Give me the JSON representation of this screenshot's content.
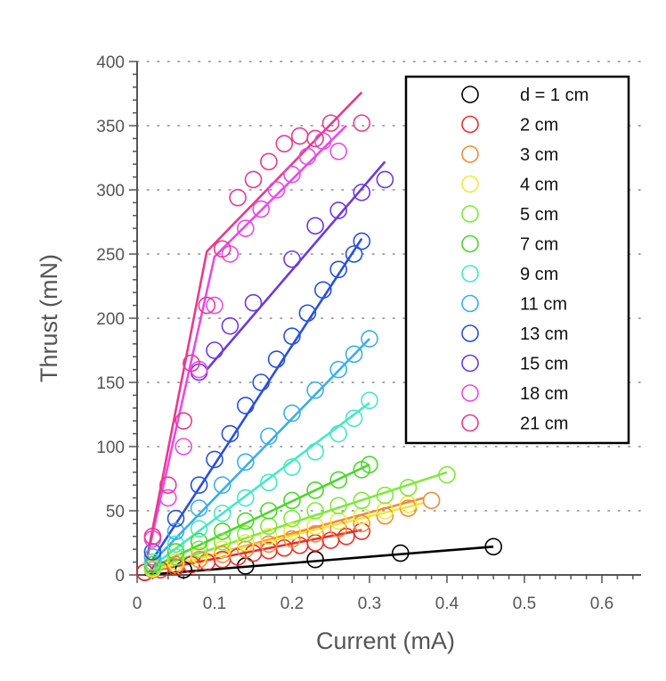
{
  "chart_data": {
    "type": "scatter",
    "title": "",
    "xlabel": "Current (mA)",
    "ylabel": "Thrust (mN)",
    "xlim": [
      0,
      0.65
    ],
    "ylim": [
      0,
      400
    ],
    "xticks": [
      "0",
      "0.1",
      "0.2",
      "0.3",
      "0.4",
      "0.5",
      "0.6"
    ],
    "yticks": [
      "0",
      "50",
      "100",
      "150",
      "200",
      "250",
      "300",
      "350",
      "400"
    ],
    "grid": "dotted-horizontal",
    "legend_position": "top-right",
    "series": [
      {
        "name": "d = 1 cm",
        "color": "#000000",
        "points": [
          [
            0.01,
            2
          ],
          [
            0.06,
            4
          ],
          [
            0.14,
            7
          ],
          [
            0.23,
            12
          ],
          [
            0.34,
            17
          ],
          [
            0.46,
            22
          ]
        ],
        "fit": [
          [
            0.01,
            0
          ],
          [
            0.46,
            22
          ]
        ]
      },
      {
        "name": "2 cm",
        "color": "#e8302c",
        "points": [
          [
            0.01,
            2
          ],
          [
            0.03,
            4
          ],
          [
            0.05,
            6
          ],
          [
            0.07,
            8
          ],
          [
            0.09,
            10
          ],
          [
            0.11,
            12
          ],
          [
            0.13,
            14
          ],
          [
            0.15,
            17
          ],
          [
            0.17,
            19
          ],
          [
            0.19,
            21
          ],
          [
            0.21,
            23
          ],
          [
            0.23,
            25
          ],
          [
            0.25,
            27
          ],
          [
            0.27,
            30
          ],
          [
            0.29,
            34
          ]
        ],
        "fit": [
          [
            0.01,
            2
          ],
          [
            0.29,
            35
          ]
        ]
      },
      {
        "name": "3 cm",
        "color": "#f08c3a",
        "points": [
          [
            0.02,
            4
          ],
          [
            0.05,
            8
          ],
          [
            0.08,
            12
          ],
          [
            0.11,
            16
          ],
          [
            0.14,
            20
          ],
          [
            0.17,
            24
          ],
          [
            0.2,
            28
          ],
          [
            0.23,
            32
          ],
          [
            0.26,
            36
          ],
          [
            0.29,
            40
          ],
          [
            0.32,
            46
          ],
          [
            0.35,
            52
          ],
          [
            0.38,
            58
          ]
        ],
        "fit": [
          [
            0.02,
            3
          ],
          [
            0.37,
            60
          ]
        ]
      },
      {
        "name": "4 cm",
        "color": "#f0e83a",
        "points": [
          [
            0.02,
            5
          ],
          [
            0.05,
            10
          ],
          [
            0.08,
            15
          ],
          [
            0.11,
            20
          ],
          [
            0.14,
            25
          ],
          [
            0.17,
            30
          ],
          [
            0.2,
            34
          ],
          [
            0.23,
            38
          ],
          [
            0.26,
            42
          ],
          [
            0.29,
            46
          ],
          [
            0.32,
            50
          ],
          [
            0.35,
            55
          ]
        ],
        "fit": [
          [
            0.02,
            4
          ],
          [
            0.37,
            56
          ]
        ]
      },
      {
        "name": "5 cm",
        "color": "#7fe83a",
        "points": [
          [
            0.02,
            6
          ],
          [
            0.05,
            14
          ],
          [
            0.08,
            20
          ],
          [
            0.11,
            26
          ],
          [
            0.14,
            32
          ],
          [
            0.17,
            38
          ],
          [
            0.2,
            44
          ],
          [
            0.23,
            50
          ],
          [
            0.26,
            54
          ],
          [
            0.29,
            58
          ],
          [
            0.32,
            62
          ],
          [
            0.35,
            68
          ],
          [
            0.4,
            78
          ]
        ],
        "fit": [
          [
            0.02,
            5
          ],
          [
            0.4,
            80
          ]
        ]
      },
      {
        "name": "7 cm",
        "color": "#4cd62a",
        "points": [
          [
            0.02,
            8
          ],
          [
            0.05,
            18
          ],
          [
            0.08,
            26
          ],
          [
            0.11,
            34
          ],
          [
            0.14,
            42
          ],
          [
            0.17,
            50
          ],
          [
            0.2,
            58
          ],
          [
            0.23,
            66
          ],
          [
            0.26,
            74
          ],
          [
            0.29,
            82
          ],
          [
            0.3,
            86
          ]
        ],
        "fit": [
          [
            0.02,
            6
          ],
          [
            0.3,
            86
          ]
        ]
      },
      {
        "name": "9 cm",
        "color": "#46e8c2",
        "points": [
          [
            0.02,
            10
          ],
          [
            0.05,
            24
          ],
          [
            0.08,
            36
          ],
          [
            0.11,
            48
          ],
          [
            0.14,
            60
          ],
          [
            0.17,
            72
          ],
          [
            0.2,
            84
          ],
          [
            0.23,
            96
          ],
          [
            0.26,
            110
          ],
          [
            0.28,
            122
          ],
          [
            0.3,
            136
          ]
        ],
        "fit": [
          [
            0.02,
            7
          ],
          [
            0.3,
            134
          ]
        ]
      },
      {
        "name": "11 cm",
        "color": "#3aaee8",
        "points": [
          [
            0.02,
            14
          ],
          [
            0.05,
            34
          ],
          [
            0.08,
            52
          ],
          [
            0.11,
            70
          ],
          [
            0.14,
            88
          ],
          [
            0.17,
            108
          ],
          [
            0.2,
            126
          ],
          [
            0.23,
            144
          ],
          [
            0.26,
            160
          ],
          [
            0.28,
            172
          ],
          [
            0.3,
            184
          ]
        ],
        "fit": [
          [
            0.02,
            10
          ],
          [
            0.3,
            184
          ]
        ]
      },
      {
        "name": "13 cm",
        "color": "#2850d8",
        "points": [
          [
            0.02,
            18
          ],
          [
            0.05,
            44
          ],
          [
            0.08,
            70
          ],
          [
            0.1,
            90
          ],
          [
            0.12,
            110
          ],
          [
            0.14,
            132
          ],
          [
            0.16,
            150
          ],
          [
            0.18,
            168
          ],
          [
            0.2,
            186
          ],
          [
            0.22,
            204
          ],
          [
            0.24,
            222
          ],
          [
            0.26,
            238
          ],
          [
            0.28,
            250
          ],
          [
            0.29,
            260
          ]
        ],
        "fit": [
          [
            0.02,
            12
          ],
          [
            0.29,
            262
          ]
        ]
      },
      {
        "name": "15 cm",
        "color": "#6a3ae0",
        "points": [
          [
            0.08,
            158
          ],
          [
            0.1,
            175
          ],
          [
            0.12,
            194
          ],
          [
            0.15,
            212
          ],
          [
            0.2,
            246
          ],
          [
            0.23,
            272
          ],
          [
            0.26,
            284
          ],
          [
            0.29,
            298
          ],
          [
            0.32,
            308
          ]
        ],
        "fit": [
          [
            0.09,
            160
          ],
          [
            0.32,
            322
          ]
        ]
      },
      {
        "name": "18 cm",
        "color": "#e84ae8",
        "points": [
          [
            0.02,
            28
          ],
          [
            0.04,
            60
          ],
          [
            0.06,
            100
          ],
          [
            0.08,
            160
          ],
          [
            0.1,
            210
          ],
          [
            0.12,
            250
          ],
          [
            0.14,
            270
          ],
          [
            0.16,
            285
          ],
          [
            0.18,
            300
          ],
          [
            0.2,
            312
          ],
          [
            0.22,
            326
          ],
          [
            0.24,
            338
          ],
          [
            0.26,
            330
          ]
        ],
        "fit": [
          [
            0.01,
            5
          ],
          [
            0.1,
            248
          ],
          [
            0.27,
            350
          ]
        ]
      },
      {
        "name": "21 cm",
        "color": "#e83a8c",
        "points": [
          [
            0.02,
            30
          ],
          [
            0.04,
            70
          ],
          [
            0.06,
            120
          ],
          [
            0.07,
            165
          ],
          [
            0.09,
            210
          ],
          [
            0.11,
            254
          ],
          [
            0.13,
            294
          ],
          [
            0.15,
            308
          ],
          [
            0.17,
            322
          ],
          [
            0.19,
            336
          ],
          [
            0.21,
            342
          ],
          [
            0.23,
            340
          ],
          [
            0.25,
            352
          ],
          [
            0.29,
            352
          ]
        ],
        "fit": [
          [
            0.01,
            5
          ],
          [
            0.09,
            252
          ],
          [
            0.29,
            376
          ]
        ]
      }
    ]
  }
}
